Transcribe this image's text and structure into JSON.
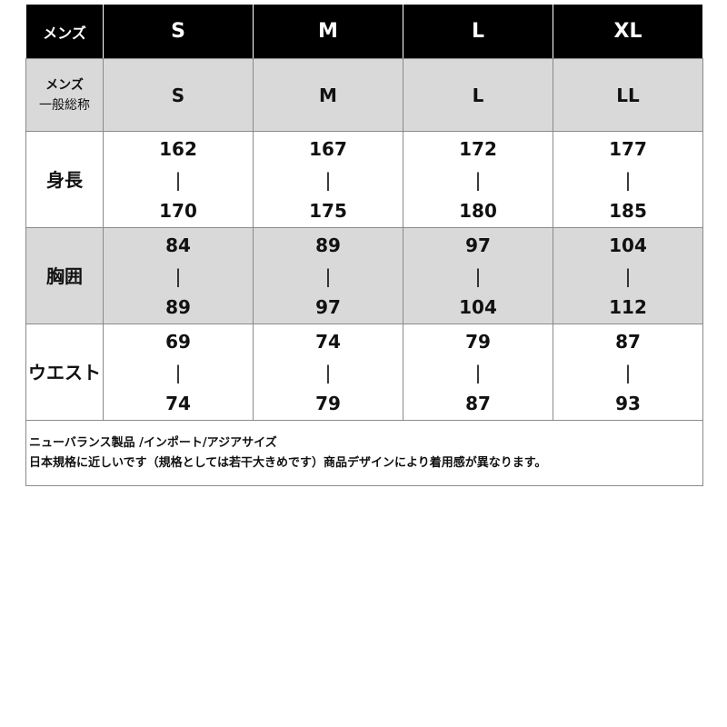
{
  "header": {
    "label": "メンズ",
    "sizes": [
      "S",
      "M",
      "L",
      "XL"
    ]
  },
  "general": {
    "label_line1": "メンズ",
    "label_line2": "一般総称",
    "sizes": [
      "S",
      "M",
      "L",
      "LL"
    ]
  },
  "separator": "|",
  "rows": [
    {
      "label": "身長",
      "ranges": [
        [
          "162",
          "170"
        ],
        [
          "167",
          "175"
        ],
        [
          "172",
          "180"
        ],
        [
          "177",
          "185"
        ]
      ]
    },
    {
      "label": "胸囲",
      "ranges": [
        [
          "84",
          "89"
        ],
        [
          "89",
          "97"
        ],
        [
          "97",
          "104"
        ],
        [
          "104",
          "112"
        ]
      ]
    },
    {
      "label": "ウエスト",
      "ranges": [
        [
          "69",
          "74"
        ],
        [
          "74",
          "79"
        ],
        [
          "79",
          "87"
        ],
        [
          "87",
          "93"
        ]
      ]
    }
  ],
  "notes": [
    "ニューバランス製品 /インポート/アジアサイズ",
    "日本規格に近しいです（規格としては若干大きめです）商品デザインにより着用感が異なります。"
  ]
}
